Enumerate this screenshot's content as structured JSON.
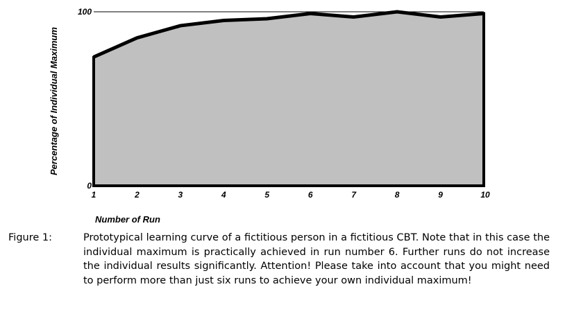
{
  "chart_data": {
    "type": "area",
    "x": [
      1,
      2,
      3,
      4,
      5,
      6,
      7,
      8,
      9,
      10
    ],
    "y": [
      74,
      85,
      92,
      95,
      96,
      99,
      97,
      100,
      97,
      99
    ],
    "xlabel": "Number of Run",
    "ylabel": "Percentage of Individual Maximum",
    "xlim": [
      1,
      10
    ],
    "ylim": [
      0,
      100
    ],
    "x_ticks": [
      "1",
      "2",
      "3",
      "4",
      "5",
      "6",
      "7",
      "8",
      "9",
      "10"
    ],
    "y_ticks": [
      "0",
      "100"
    ],
    "fill_color": "#c0c0c0",
    "line_color": "#000000",
    "grid": false,
    "legend": "none"
  },
  "caption": {
    "label": "Figure 1:",
    "text": "Prototypical learning curve of a fictitious person in a fictitious CBT. Note that in this case the individual maximum is practically achieved in run number 6. Further runs do not increase the individual results significantly. Attention! Please take into account that you might need to perform more than just six runs to achieve your own individual maximum!"
  }
}
